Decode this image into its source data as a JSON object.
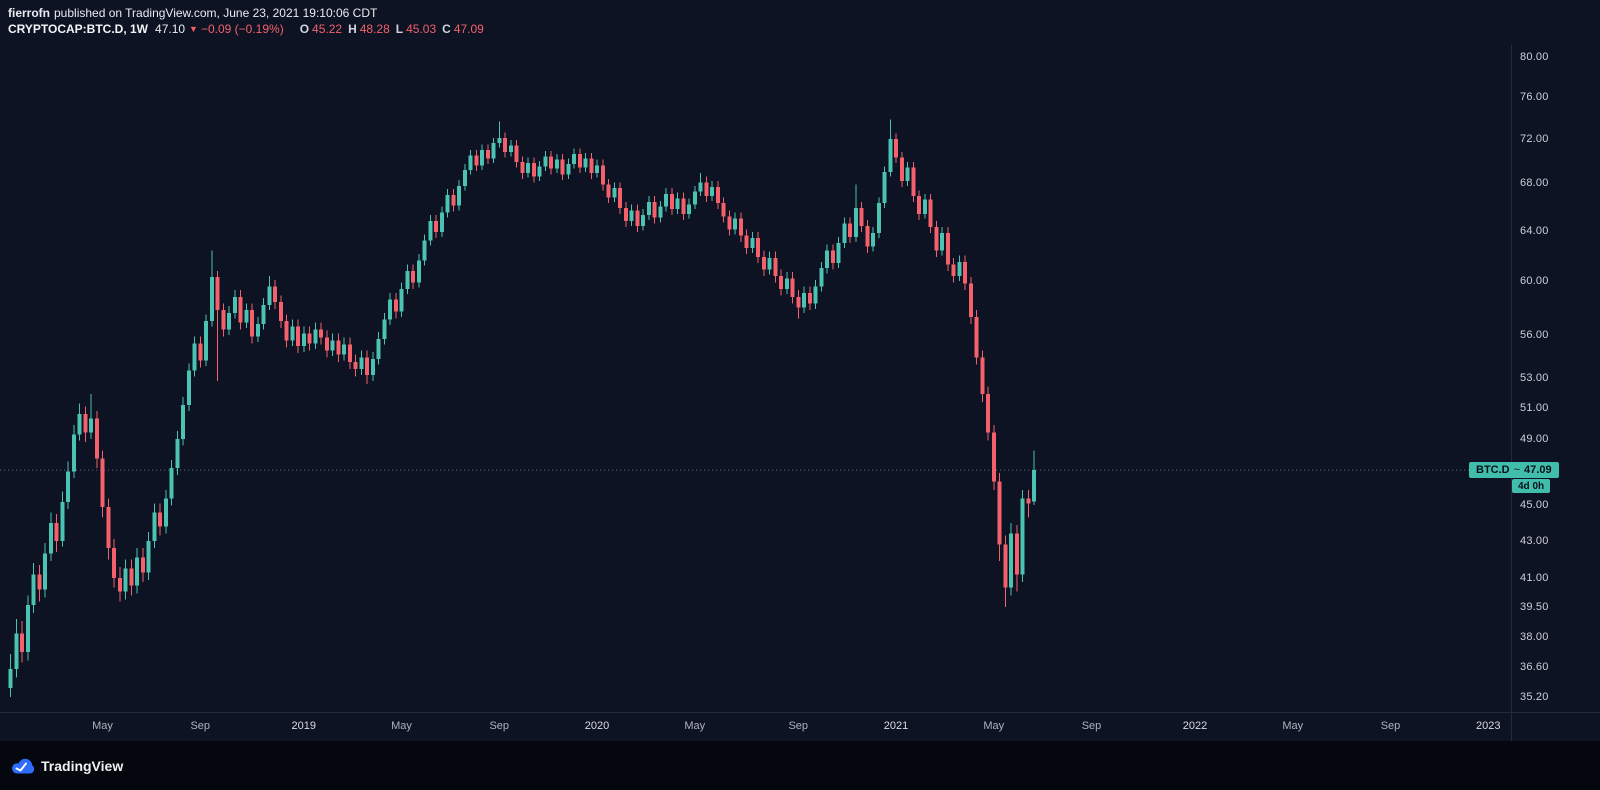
{
  "header": {
    "author": "fierrofn",
    "published_text": "published on TradingView.com, June 23, 2021 19:10:06 CDT",
    "symbol": "CRYPTOCAP:BTC.D, 1W",
    "last_price": "47.10",
    "direction_icon": "▼",
    "change": "−0.09 (−0.19%)",
    "ohlc": {
      "o_label": "O",
      "o": "45.22",
      "h_label": "H",
      "h": "48.28",
      "l_label": "L",
      "l": "45.03",
      "c_label": "C",
      "c": "47.09"
    }
  },
  "price_label": {
    "symbol": "BTC.D",
    "tilde": "~",
    "value": "47.09",
    "countdown": "4d 0h"
  },
  "footer": {
    "brand": "TradingView"
  },
  "colors": {
    "background": "#0d1322",
    "up": "#4cc2b2",
    "down": "#f4606b",
    "accent": "#40bdab",
    "axis_text": "#ccd0d9",
    "price_line": "#9aa4b0",
    "axis_border": "#232a3a"
  },
  "chart_data": {
    "type": "candlestick",
    "symbol": "CRYPTOCAP:BTC.D",
    "interval": "1W",
    "title": "Bitcoin Dominance (BTC.D) weekly candlestick chart",
    "scale": "logarithmic",
    "grid": false,
    "legend_position": "none",
    "last_price": 47.09,
    "ylim": [
      34.5,
      81.0
    ],
    "y_axis": {
      "side": "right",
      "ticks": [
        {
          "v": 80,
          "label": "80.00"
        },
        {
          "v": 76,
          "label": "76.00"
        },
        {
          "v": 72,
          "label": "72.00"
        },
        {
          "v": 68,
          "label": "68.00"
        },
        {
          "v": 64,
          "label": "64.00"
        },
        {
          "v": 60,
          "label": "60.00"
        },
        {
          "v": 56,
          "label": "56.00"
        },
        {
          "v": 53,
          "label": "53.00"
        },
        {
          "v": 51,
          "label": "51.00"
        },
        {
          "v": 49,
          "label": "49.00"
        },
        {
          "v": 45,
          "label": "45.00"
        },
        {
          "v": 43,
          "label": "43.00"
        },
        {
          "v": 41,
          "label": "41.00"
        },
        {
          "v": 39.5,
          "label": "39.50"
        },
        {
          "v": 38,
          "label": "38.00"
        },
        {
          "v": 36.6,
          "label": "36.60"
        },
        {
          "v": 35.2,
          "label": "35.20"
        }
      ]
    },
    "x_axis": {
      "ticks": [
        {
          "label": "May",
          "week": 16
        },
        {
          "label": "Sep",
          "week": 33
        },
        {
          "label": "2019",
          "week": 51,
          "major": true
        },
        {
          "label": "May",
          "week": 68
        },
        {
          "label": "Sep",
          "week": 85
        },
        {
          "label": "2020",
          "week": 102,
          "major": true
        },
        {
          "label": "May",
          "week": 119
        },
        {
          "label": "Sep",
          "week": 137
        },
        {
          "label": "2021",
          "week": 154,
          "major": true
        },
        {
          "label": "May",
          "week": 171
        },
        {
          "label": "Sep",
          "week": 188
        },
        {
          "label": "2022",
          "week": 206,
          "major": true
        },
        {
          "label": "May",
          "week": 223
        },
        {
          "label": "Sep",
          "week": 240
        },
        {
          "label": "2023",
          "week": 257,
          "major": true
        }
      ]
    },
    "candles_format": [
      "open",
      "high",
      "low",
      "close"
    ],
    "candles": [
      [
        35.6,
        37.2,
        35.2,
        36.5
      ],
      [
        36.5,
        38.9,
        36.1,
        38.2
      ],
      [
        38.2,
        38.8,
        36.8,
        37.3
      ],
      [
        37.3,
        40.1,
        36.9,
        39.6
      ],
      [
        39.6,
        41.8,
        39.2,
        41.2
      ],
      [
        41.2,
        41.7,
        39.8,
        40.4
      ],
      [
        40.4,
        42.9,
        40.0,
        42.3
      ],
      [
        42.3,
        44.6,
        41.9,
        44.0
      ],
      [
        44.0,
        44.5,
        42.4,
        43.0
      ],
      [
        43.0,
        45.8,
        42.7,
        45.2
      ],
      [
        45.2,
        47.6,
        44.8,
        47.0
      ],
      [
        47.0,
        49.9,
        46.6,
        49.3
      ],
      [
        49.3,
        51.3,
        48.9,
        50.6
      ],
      [
        50.6,
        51.1,
        48.8,
        49.4
      ],
      [
        49.4,
        51.9,
        49.0,
        50.3
      ],
      [
        50.3,
        50.8,
        47.2,
        47.8
      ],
      [
        47.8,
        48.3,
        44.3,
        44.9
      ],
      [
        44.9,
        45.4,
        42.0,
        42.6
      ],
      [
        42.6,
        43.1,
        40.5,
        41.0
      ],
      [
        41.0,
        41.6,
        39.8,
        40.3
      ],
      [
        40.3,
        42.0,
        39.9,
        41.5
      ],
      [
        41.5,
        42.0,
        40.1,
        40.6
      ],
      [
        40.6,
        42.6,
        40.2,
        42.1
      ],
      [
        42.1,
        42.6,
        40.8,
        41.3
      ],
      [
        41.3,
        43.5,
        40.9,
        43.0
      ],
      [
        43.0,
        45.1,
        42.6,
        44.6
      ],
      [
        44.6,
        45.1,
        43.3,
        43.8
      ],
      [
        43.8,
        45.9,
        43.4,
        45.4
      ],
      [
        45.4,
        47.7,
        45.0,
        47.2
      ],
      [
        47.2,
        49.5,
        46.8,
        49.0
      ],
      [
        49.0,
        51.7,
        48.6,
        51.2
      ],
      [
        51.2,
        54.0,
        50.8,
        53.5
      ],
      [
        53.5,
        55.9,
        53.1,
        55.4
      ],
      [
        55.4,
        55.9,
        53.7,
        54.2
      ],
      [
        54.2,
        57.5,
        53.8,
        57.0
      ],
      [
        57.0,
        62.4,
        56.6,
        60.3
      ],
      [
        60.3,
        60.8,
        52.8,
        57.8
      ],
      [
        57.8,
        58.3,
        55.9,
        56.4
      ],
      [
        56.4,
        58.1,
        56.0,
        57.6
      ],
      [
        57.6,
        59.3,
        57.2,
        58.8
      ],
      [
        58.8,
        59.3,
        56.4,
        56.9
      ],
      [
        56.9,
        58.3,
        56.5,
        57.8
      ],
      [
        57.8,
        58.3,
        55.4,
        55.9
      ],
      [
        55.9,
        57.3,
        55.5,
        56.8
      ],
      [
        56.8,
        58.7,
        56.4,
        58.2
      ],
      [
        58.2,
        60.4,
        57.8,
        59.6
      ],
      [
        59.6,
        60.1,
        57.9,
        58.4
      ],
      [
        58.4,
        58.9,
        56.5,
        57.0
      ],
      [
        57.0,
        57.5,
        55.1,
        55.6
      ],
      [
        55.6,
        57.1,
        55.2,
        56.6
      ],
      [
        56.6,
        57.1,
        54.7,
        55.2
      ],
      [
        55.2,
        56.6,
        54.8,
        56.1
      ],
      [
        56.1,
        56.6,
        54.9,
        55.4
      ],
      [
        55.4,
        56.9,
        55.0,
        56.4
      ],
      [
        56.4,
        56.9,
        55.3,
        55.8
      ],
      [
        55.8,
        56.3,
        54.4,
        54.9
      ],
      [
        54.9,
        56.1,
        54.5,
        55.6
      ],
      [
        55.6,
        56.1,
        54.1,
        54.6
      ],
      [
        54.6,
        55.8,
        54.2,
        55.3
      ],
      [
        55.3,
        55.8,
        53.6,
        54.1
      ],
      [
        54.1,
        54.6,
        53.1,
        53.6
      ],
      [
        53.6,
        54.9,
        53.2,
        54.4
      ],
      [
        54.4,
        54.9,
        52.6,
        53.2
      ],
      [
        53.2,
        54.8,
        52.8,
        54.3
      ],
      [
        54.3,
        56.2,
        53.9,
        55.7
      ],
      [
        55.7,
        57.6,
        55.3,
        57.1
      ],
      [
        57.1,
        59.1,
        56.7,
        58.6
      ],
      [
        58.6,
        59.1,
        57.2,
        57.7
      ],
      [
        57.7,
        59.9,
        57.3,
        59.4
      ],
      [
        59.4,
        61.3,
        59.0,
        60.8
      ],
      [
        60.8,
        61.3,
        59.4,
        59.9
      ],
      [
        59.9,
        62.1,
        59.5,
        61.6
      ],
      [
        61.6,
        63.7,
        61.2,
        63.2
      ],
      [
        63.2,
        65.3,
        62.8,
        64.8
      ],
      [
        64.8,
        65.3,
        63.4,
        63.9
      ],
      [
        63.9,
        66.0,
        63.5,
        65.5
      ],
      [
        65.5,
        67.5,
        65.1,
        67.0
      ],
      [
        67.0,
        67.5,
        65.6,
        66.1
      ],
      [
        66.1,
        68.3,
        65.7,
        67.8
      ],
      [
        67.8,
        69.7,
        67.4,
        69.2
      ],
      [
        69.2,
        71.0,
        68.8,
        70.5
      ],
      [
        70.5,
        71.0,
        69.1,
        69.6
      ],
      [
        69.6,
        71.5,
        69.2,
        71.0
      ],
      [
        71.0,
        71.5,
        69.7,
        70.2
      ],
      [
        70.2,
        72.1,
        69.8,
        71.6
      ],
      [
        71.6,
        73.6,
        71.2,
        72.1
      ],
      [
        72.1,
        72.6,
        70.3,
        70.8
      ],
      [
        70.8,
        71.9,
        70.4,
        71.4
      ],
      [
        71.4,
        71.9,
        69.4,
        69.9
      ],
      [
        69.9,
        70.4,
        68.4,
        68.9
      ],
      [
        68.9,
        70.3,
        68.5,
        69.8
      ],
      [
        69.8,
        70.3,
        68.1,
        68.6
      ],
      [
        68.6,
        70.0,
        68.2,
        69.5
      ],
      [
        69.5,
        70.9,
        69.1,
        70.4
      ],
      [
        70.4,
        70.9,
        68.8,
        69.3
      ],
      [
        69.3,
        70.6,
        68.9,
        70.1
      ],
      [
        70.1,
        70.6,
        68.3,
        68.8
      ],
      [
        68.8,
        70.2,
        68.4,
        69.7
      ],
      [
        69.7,
        71.1,
        69.3,
        70.6
      ],
      [
        70.6,
        71.1,
        68.9,
        69.4
      ],
      [
        69.4,
        70.7,
        69.0,
        70.2
      ],
      [
        70.2,
        70.7,
        68.4,
        68.9
      ],
      [
        68.9,
        70.1,
        68.5,
        69.6
      ],
      [
        69.6,
        70.1,
        67.4,
        67.9
      ],
      [
        67.9,
        68.4,
        66.3,
        66.8
      ],
      [
        66.8,
        68.1,
        66.4,
        67.6
      ],
      [
        67.6,
        68.1,
        65.4,
        65.9
      ],
      [
        65.9,
        66.4,
        64.3,
        64.8
      ],
      [
        64.8,
        66.2,
        64.4,
        65.7
      ],
      [
        65.7,
        66.2,
        63.9,
        64.4
      ],
      [
        64.4,
        65.8,
        64.0,
        65.3
      ],
      [
        65.3,
        66.9,
        64.9,
        66.4
      ],
      [
        66.4,
        66.9,
        64.6,
        65.1
      ],
      [
        65.1,
        66.5,
        64.7,
        66.0
      ],
      [
        66.0,
        67.6,
        65.6,
        67.1
      ],
      [
        67.1,
        67.6,
        65.3,
        65.8
      ],
      [
        65.8,
        67.2,
        65.4,
        66.7
      ],
      [
        66.7,
        67.2,
        64.9,
        65.4
      ],
      [
        65.4,
        66.7,
        65.0,
        66.2
      ],
      [
        66.2,
        67.8,
        65.8,
        67.3
      ],
      [
        67.3,
        68.9,
        66.9,
        68.1
      ],
      [
        68.1,
        68.6,
        66.4,
        66.9
      ],
      [
        66.9,
        68.2,
        66.5,
        67.7
      ],
      [
        67.7,
        68.2,
        65.8,
        66.3
      ],
      [
        66.3,
        66.8,
        64.7,
        65.2
      ],
      [
        65.2,
        65.7,
        63.6,
        64.1
      ],
      [
        64.1,
        65.5,
        63.7,
        65.0
      ],
      [
        65.0,
        65.5,
        63.1,
        63.6
      ],
      [
        63.6,
        64.1,
        62.1,
        62.6
      ],
      [
        62.6,
        63.9,
        62.2,
        63.4
      ],
      [
        63.4,
        63.9,
        61.4,
        61.9
      ],
      [
        61.9,
        62.4,
        60.4,
        60.9
      ],
      [
        60.9,
        62.3,
        60.5,
        61.8
      ],
      [
        61.8,
        62.3,
        59.9,
        60.4
      ],
      [
        60.4,
        60.9,
        58.9,
        59.4
      ],
      [
        59.4,
        60.7,
        59.0,
        60.2
      ],
      [
        60.2,
        60.7,
        58.3,
        58.8
      ],
      [
        58.8,
        59.3,
        57.2,
        58.0
      ],
      [
        58.0,
        59.6,
        57.6,
        59.1
      ],
      [
        59.1,
        59.6,
        57.8,
        58.3
      ],
      [
        58.3,
        60.1,
        57.9,
        59.6
      ],
      [
        59.6,
        61.5,
        59.2,
        61.0
      ],
      [
        61.0,
        62.9,
        60.6,
        62.4
      ],
      [
        62.4,
        62.9,
        60.9,
        61.4
      ],
      [
        61.4,
        63.5,
        61.0,
        63.0
      ],
      [
        63.0,
        65.1,
        62.6,
        64.6
      ],
      [
        64.6,
        65.1,
        63.0,
        63.5
      ],
      [
        63.5,
        67.9,
        63.1,
        65.9
      ],
      [
        65.9,
        66.4,
        63.9,
        64.4
      ],
      [
        64.4,
        64.9,
        62.2,
        62.7
      ],
      [
        62.7,
        64.3,
        62.3,
        63.8
      ],
      [
        63.8,
        66.8,
        63.4,
        66.3
      ],
      [
        66.3,
        69.5,
        65.9,
        69.0
      ],
      [
        69.0,
        73.8,
        68.6,
        72.0
      ],
      [
        72.0,
        72.5,
        69.8,
        70.3
      ],
      [
        70.3,
        70.8,
        67.7,
        68.2
      ],
      [
        68.2,
        69.9,
        67.8,
        69.4
      ],
      [
        69.4,
        69.9,
        66.4,
        66.9
      ],
      [
        66.9,
        67.4,
        64.9,
        65.4
      ],
      [
        65.4,
        67.1,
        65.0,
        66.6
      ],
      [
        66.6,
        67.1,
        63.8,
        64.3
      ],
      [
        64.3,
        64.8,
        61.9,
        62.4
      ],
      [
        62.4,
        64.3,
        62.0,
        63.8
      ],
      [
        63.8,
        64.3,
        60.8,
        61.3
      ],
      [
        61.3,
        61.8,
        59.9,
        60.4
      ],
      [
        60.4,
        62.0,
        60.0,
        61.5
      ],
      [
        61.5,
        62.0,
        59.3,
        59.8
      ],
      [
        59.8,
        60.3,
        56.8,
        57.3
      ],
      [
        57.3,
        57.8,
        53.9,
        54.4
      ],
      [
        54.4,
        54.9,
        51.4,
        51.9
      ],
      [
        51.9,
        52.4,
        48.9,
        49.4
      ],
      [
        49.4,
        49.9,
        45.9,
        46.4
      ],
      [
        46.4,
        46.9,
        41.9,
        42.8
      ],
      [
        42.8,
        43.3,
        39.5,
        40.5
      ],
      [
        40.5,
        44.0,
        40.1,
        43.4
      ],
      [
        43.4,
        43.9,
        40.3,
        41.2
      ],
      [
        41.2,
        45.9,
        40.8,
        45.4
      ],
      [
        45.4,
        45.9,
        44.3,
        45.1
      ],
      [
        45.22,
        48.28,
        45.03,
        47.09
      ]
    ]
  }
}
